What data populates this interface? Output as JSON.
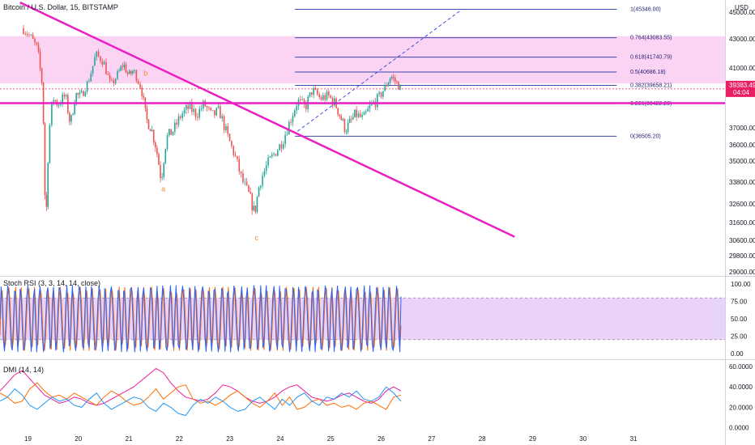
{
  "chart_data": {
    "type": "candlestick",
    "title": "Bitcoin / U.S. Dollar, 15, BITSTAMP",
    "currency_label": "USD",
    "price_axis": {
      "ticks": [
        "45000.00",
        "43000.00",
        "41000.00",
        "39000.00",
        "37000.00",
        "36000.00",
        "35000.00",
        "33800.00",
        "32600.00",
        "31600.00",
        "30600.00",
        "29800.00",
        "29000.00"
      ],
      "ylim": [
        28500,
        46500
      ]
    },
    "x_axis": {
      "ticks": [
        "19",
        "20",
        "21",
        "22",
        "23",
        "24",
        "25",
        "26",
        "27",
        "28",
        "29",
        "30",
        "31"
      ]
    },
    "last_price": {
      "value": "39383.49",
      "countdown": "04:04",
      "color": "#e91e63"
    },
    "price_series": [
      {
        "t": 18.9,
        "p": 43800
      },
      {
        "t": 19.05,
        "p": 43200
      },
      {
        "t": 19.2,
        "p": 42300
      },
      {
        "t": 19.3,
        "p": 39500
      },
      {
        "t": 19.36,
        "p": 31000
      },
      {
        "t": 19.42,
        "p": 36600
      },
      {
        "t": 19.5,
        "p": 38800
      },
      {
        "t": 19.6,
        "p": 38400
      },
      {
        "t": 19.75,
        "p": 38900
      },
      {
        "t": 19.85,
        "p": 37200
      },
      {
        "t": 19.95,
        "p": 39000
      },
      {
        "t": 20.05,
        "p": 38800
      },
      {
        "t": 20.2,
        "p": 39900
      },
      {
        "t": 20.35,
        "p": 41900
      },
      {
        "t": 20.5,
        "p": 41500
      },
      {
        "t": 20.65,
        "p": 39600
      },
      {
        "t": 20.8,
        "p": 40600
      },
      {
        "t": 20.9,
        "p": 41300
      },
      {
        "t": 21.0,
        "p": 40400
      },
      {
        "t": 21.1,
        "p": 40800
      },
      {
        "t": 21.25,
        "p": 39500
      },
      {
        "t": 21.35,
        "p": 37500
      },
      {
        "t": 21.45,
        "p": 37000
      },
      {
        "t": 21.55,
        "p": 35800
      },
      {
        "t": 21.65,
        "p": 33900
      },
      {
        "t": 21.75,
        "p": 36400
      },
      {
        "t": 21.9,
        "p": 36900
      },
      {
        "t": 22.05,
        "p": 37800
      },
      {
        "t": 22.2,
        "p": 38200
      },
      {
        "t": 22.35,
        "p": 37800
      },
      {
        "t": 22.5,
        "p": 38400
      },
      {
        "t": 22.65,
        "p": 37700
      },
      {
        "t": 22.8,
        "p": 38000
      },
      {
        "t": 22.95,
        "p": 36600
      },
      {
        "t": 23.1,
        "p": 35400
      },
      {
        "t": 23.25,
        "p": 33900
      },
      {
        "t": 23.4,
        "p": 33000
      },
      {
        "t": 23.5,
        "p": 32100
      },
      {
        "t": 23.6,
        "p": 33800
      },
      {
        "t": 23.75,
        "p": 34800
      },
      {
        "t": 23.9,
        "p": 35500
      },
      {
        "t": 24.05,
        "p": 36200
      },
      {
        "t": 24.2,
        "p": 37400
      },
      {
        "t": 24.35,
        "p": 38600
      },
      {
        "t": 24.5,
        "p": 38200
      },
      {
        "t": 24.65,
        "p": 39300
      },
      {
        "t": 24.8,
        "p": 38700
      },
      {
        "t": 24.95,
        "p": 38900
      },
      {
        "t": 25.1,
        "p": 38400
      },
      {
        "t": 25.3,
        "p": 36900
      },
      {
        "t": 25.5,
        "p": 37800
      },
      {
        "t": 25.65,
        "p": 37500
      },
      {
        "t": 25.8,
        "p": 38300
      },
      {
        "t": 25.95,
        "p": 38700
      },
      {
        "t": 26.1,
        "p": 39600
      },
      {
        "t": 26.2,
        "p": 40400
      },
      {
        "t": 26.3,
        "p": 39900
      },
      {
        "t": 26.4,
        "p": 39383
      }
    ],
    "fibonacci": {
      "t_start": 24.3,
      "t_end": 26.5,
      "levels": [
        {
          "label": "1(45346.00)",
          "price": 45346
        },
        {
          "label": "0.764(43083.55)",
          "price": 43083.55
        },
        {
          "label": "0.618(41740.79)",
          "price": 41740.79
        },
        {
          "label": "0.5(40686.18)",
          "price": 40686.18
        },
        {
          "label": "0.382(39658.21)",
          "price": 39658.21
        },
        {
          "label": "0.236(38422.20)",
          "price": 38422.2
        },
        {
          "label": "0(36505.20)",
          "price": 36505.2
        }
      ]
    },
    "zone": {
      "price_low": 39800,
      "price_high": 43200,
      "color": "#f9c5f0"
    },
    "horizontal_line": {
      "price": 38450,
      "color": "#e91ec4"
    },
    "trendline": {
      "t1": 18.85,
      "p1": 46200,
      "t2": 28.65,
      "p2": 30800,
      "color": "#e91ec4"
    },
    "projection_line": {
      "t1": 24.35,
      "p1": 36800,
      "t2": 27.6,
      "p2": 45300,
      "color": "#3f51d8"
    },
    "wave_labels": [
      {
        "text": "b",
        "t": 21.3,
        "p": 40400
      },
      {
        "text": "a",
        "t": 21.65,
        "p": 33300
      },
      {
        "text": "c",
        "t": 23.5,
        "p": 30600
      }
    ],
    "stoch_rsi": {
      "title": "Stoch RSI (3, 3, 14, 14, close)",
      "ticks": [
        "100.00",
        "75.00",
        "50.00",
        "25.00",
        "0.00"
      ],
      "upper_band": 80,
      "lower_band": 20,
      "band_color": "#e3c8f8",
      "k_color": "#2962ff",
      "d_color": "#ff6d00",
      "last_k": 82,
      "last_d": 40,
      "oscillations": 62
    },
    "dmi": {
      "title": "DMI (14, 14)",
      "ticks": [
        "60.0000",
        "40.0000",
        "20.0000",
        "0.0000"
      ],
      "plus_color": "#2196f3",
      "minus_color": "#ff6d00",
      "adx_color": "#e91e9a",
      "plus_di": [
        26,
        30,
        38,
        32,
        22,
        18,
        24,
        30,
        26,
        28,
        22,
        20,
        28,
        34,
        24,
        18,
        22,
        26,
        30,
        28,
        20,
        16,
        24,
        20,
        14,
        12,
        22,
        28,
        24,
        30,
        26,
        20,
        16,
        18,
        26,
        30,
        24,
        18,
        28,
        22,
        30,
        34,
        26,
        22,
        30,
        28,
        34,
        30,
        36,
        28,
        26,
        30,
        40,
        34,
        26
      ],
      "minus_di": [
        34,
        30,
        24,
        26,
        38,
        44,
        36,
        30,
        32,
        28,
        34,
        30,
        26,
        22,
        30,
        36,
        32,
        26,
        22,
        24,
        30,
        38,
        28,
        34,
        40,
        42,
        28,
        24,
        26,
        22,
        26,
        32,
        36,
        30,
        24,
        20,
        26,
        34,
        22,
        30,
        18,
        20,
        26,
        28,
        22,
        24,
        20,
        22,
        18,
        24,
        26,
        22,
        18,
        30,
        32
      ],
      "adx": [
        36,
        44,
        52,
        56,
        48,
        40,
        32,
        28,
        24,
        26,
        30,
        28,
        24,
        22,
        24,
        28,
        32,
        36,
        40,
        46,
        52,
        58,
        54,
        44,
        36,
        30,
        28,
        26,
        28,
        34,
        42,
        40,
        36,
        30,
        26,
        24,
        26,
        30,
        36,
        40,
        42,
        36,
        30,
        28,
        26,
        28,
        32,
        34,
        30,
        26,
        24,
        28,
        36,
        40,
        36
      ]
    }
  }
}
